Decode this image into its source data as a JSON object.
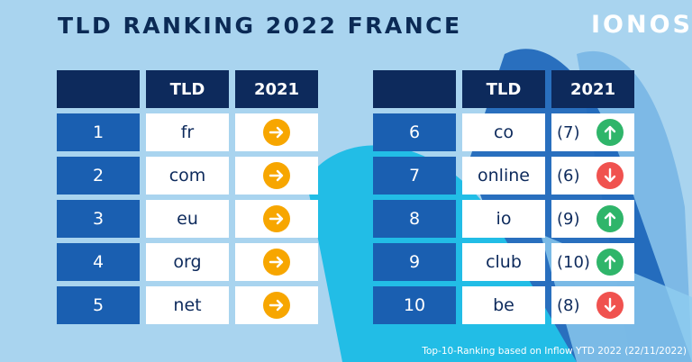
{
  "title": "TLD RANKING 2022 FRANCE",
  "logo": "IONOS",
  "colors": {
    "background": "#a9d4ef",
    "header": "#0d2a5c",
    "rank": "#1a5fb1",
    "same": "#f7a600",
    "up": "#2fb56a",
    "down": "#f0524f"
  },
  "left_table": {
    "headers": [
      "",
      "TLD",
      "2021"
    ],
    "rows": [
      {
        "rank": "1",
        "tld": "fr",
        "prev": "",
        "trend": "same"
      },
      {
        "rank": "2",
        "tld": "com",
        "prev": "",
        "trend": "same"
      },
      {
        "rank": "3",
        "tld": "eu",
        "prev": "",
        "trend": "same"
      },
      {
        "rank": "4",
        "tld": "org",
        "prev": "",
        "trend": "same"
      },
      {
        "rank": "5",
        "tld": "net",
        "prev": "",
        "trend": "same"
      }
    ]
  },
  "right_table": {
    "headers": [
      "",
      "TLD",
      "2021"
    ],
    "rows": [
      {
        "rank": "6",
        "tld": "co",
        "prev": "(7)",
        "trend": "up"
      },
      {
        "rank": "7",
        "tld": "online",
        "prev": "(6)",
        "trend": "down"
      },
      {
        "rank": "8",
        "tld": "io",
        "prev": "(9)",
        "trend": "up"
      },
      {
        "rank": "9",
        "tld": "club",
        "prev": "(10)",
        "trend": "up"
      },
      {
        "rank": "10",
        "tld": "be",
        "prev": "(8)",
        "trend": "down"
      }
    ]
  },
  "footer": "Top-10-Ranking based on Inflow YTD 2022 (22/11/2022)"
}
